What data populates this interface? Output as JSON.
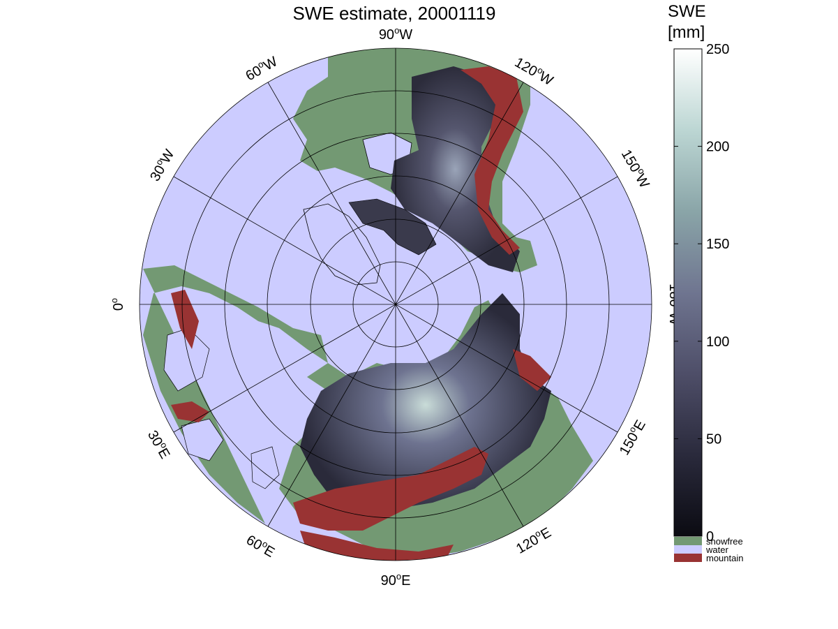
{
  "title": "SWE estimate, 20001119",
  "colorbar": {
    "title_line1": "SWE",
    "title_line2": "[mm]",
    "ticks": [
      "0",
      "50",
      "100",
      "150",
      "200",
      "250"
    ],
    "range": [
      0,
      250
    ],
    "gradient_colors": [
      "#0b0b12",
      "#2a2a3c",
      "#4e4e68",
      "#6f7590",
      "#8aa5a8",
      "#bcd6d3",
      "#ffffff"
    ],
    "categories": [
      {
        "label": "snowfree",
        "color": "#739973"
      },
      {
        "label": "water",
        "color": "#ccccff"
      },
      {
        "label": "mountain",
        "color": "#993333"
      }
    ]
  },
  "longitude_labels": [
    {
      "text": "90",
      "suffix": "W",
      "name": "lon-label-90w"
    },
    {
      "text": "120",
      "suffix": "W",
      "name": "lon-label-120w"
    },
    {
      "text": "150",
      "suffix": "W",
      "name": "lon-label-150w"
    },
    {
      "text": "180",
      "suffix": "W",
      "name": "lon-label-180w"
    },
    {
      "text": "150",
      "suffix": "E",
      "name": "lon-label-150e"
    },
    {
      "text": "120",
      "suffix": "E",
      "name": "lon-label-120e"
    },
    {
      "text": "90",
      "suffix": "E",
      "name": "lon-label-90e"
    },
    {
      "text": "60",
      "suffix": "E",
      "name": "lon-label-60e"
    },
    {
      "text": "30",
      "suffix": "E",
      "name": "lon-label-30e"
    },
    {
      "text": "0",
      "suffix": "",
      "name": "lon-label-0"
    },
    {
      "text": "30",
      "suffix": "W",
      "name": "lon-label-30w"
    },
    {
      "text": "60",
      "suffix": "W",
      "name": "lon-label-60w"
    }
  ],
  "map": {
    "projection": "north polar stereographic",
    "colors": {
      "water": "#ccccff",
      "snowfree": "#739973",
      "mountain": "#993333",
      "coast": "#000000"
    }
  }
}
